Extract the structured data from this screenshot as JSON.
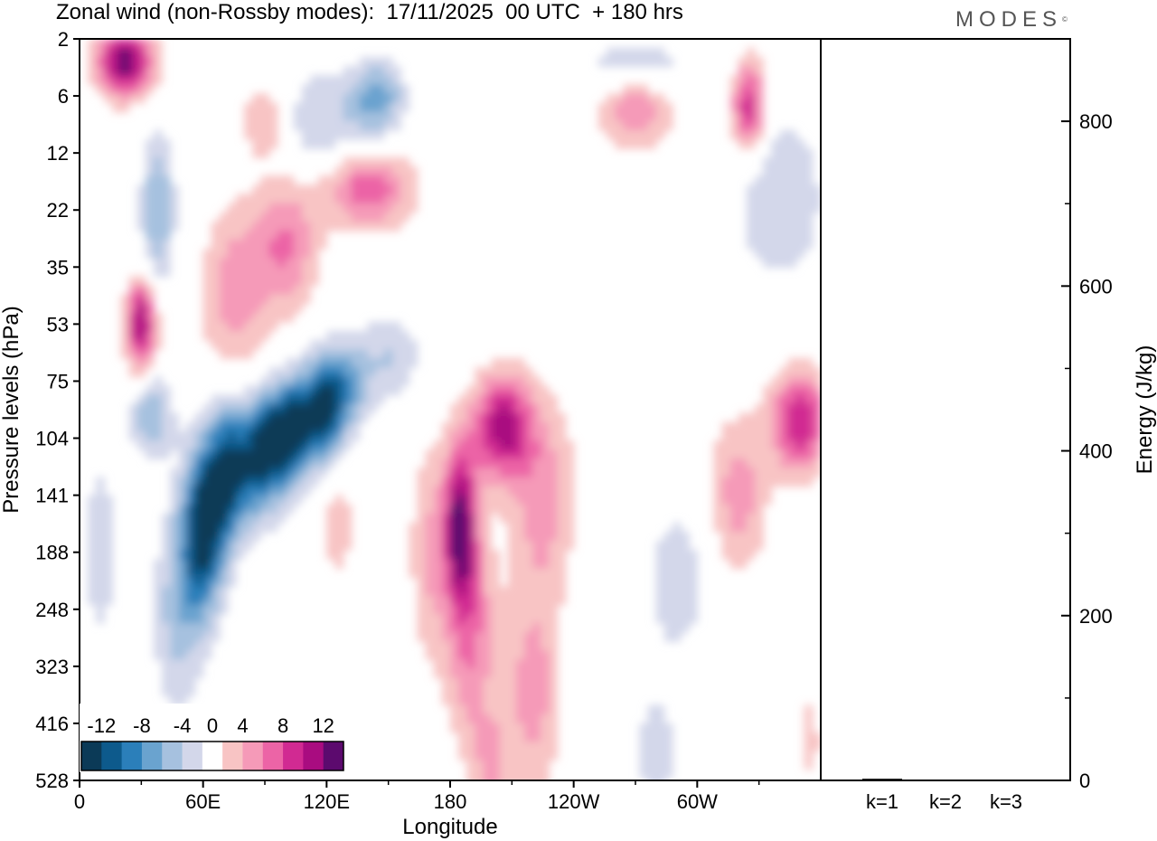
{
  "title": "Zonal wind (non-Rossby modes):  17/11/2025  00 UTC  + 180 hrs",
  "brand": "MODES",
  "chart_data": [
    {
      "type": "heatmap",
      "title": "Zonal wind (non-Rossby modes):  17/11/2025  00 UTC  + 180 hrs",
      "xlabel": "Longitude",
      "ylabel": "Pressure levels (hPa)",
      "x_ticks": [
        "0",
        "60E",
        "120E",
        "180",
        "120W",
        "60W"
      ],
      "x_tick_values": [
        0,
        60,
        120,
        180,
        240,
        300
      ],
      "xlim": [
        0,
        360
      ],
      "y_ticks": [
        "2",
        "6",
        "12",
        "22",
        "35",
        "53",
        "75",
        "104",
        "141",
        "188",
        "248",
        "323",
        "416",
        "528"
      ],
      "colorbar": {
        "labels": [
          "-12",
          "-8",
          "-4",
          "0",
          "4",
          "8",
          "12"
        ],
        "levels": [
          -14,
          -12,
          -10,
          -8,
          -6,
          -4,
          -2,
          2,
          4,
          6,
          8,
          10,
          12,
          14
        ],
        "colors": [
          "#0b3a57",
          "#0d5a8c",
          "#2b7fba",
          "#6aa3cf",
          "#a6c1df",
          "#d3d7ea",
          "#ffffff",
          "#f8c4c4",
          "#f59ab8",
          "#ec64a6",
          "#d12a92",
          "#a90c80",
          "#5c0a6e"
        ]
      },
      "features": [
        {
          "kind": "neg",
          "peak": -14,
          "lon": 100,
          "lev": 7.3
        },
        {
          "kind": "neg",
          "peak": -12,
          "lon": 65,
          "lev": 8.5
        },
        {
          "kind": "neg",
          "peak": -10,
          "lon": 88,
          "lev": 7.8
        },
        {
          "kind": "neg",
          "peak": -12,
          "lon": 118,
          "lev": 6.8
        },
        {
          "kind": "neg",
          "peak": -6,
          "lon": 40,
          "lev": 3.0
        },
        {
          "kind": "neg",
          "peak": -6,
          "lon": 145,
          "lev": 1.0
        },
        {
          "kind": "pos",
          "peak": 12,
          "lon": 185,
          "lev": 8.5
        },
        {
          "kind": "pos",
          "peak": 12,
          "lon": 205,
          "lev": 6.8
        },
        {
          "kind": "pos",
          "peak": 12,
          "lon": 25,
          "lev": 0.4
        },
        {
          "kind": "pos",
          "peak": 12,
          "lon": 30,
          "lev": 5.0
        },
        {
          "kind": "pos",
          "peak": 10,
          "lon": 350,
          "lev": 6.8
        },
        {
          "kind": "pos",
          "peak": 10,
          "lon": 325,
          "lev": 1.2
        },
        {
          "kind": "pos",
          "peak": 8,
          "lon": 140,
          "lev": 2.5
        }
      ]
    },
    {
      "type": "bar",
      "title": "",
      "ylabel": "Energy (J/kg)",
      "categories": [
        "k=1",
        "k=2",
        "k=3"
      ],
      "values": [
        2,
        1,
        1
      ],
      "ylim": [
        0,
        900
      ],
      "y_ticks": [
        "0",
        "200",
        "400",
        "600",
        "800"
      ],
      "y_tick_values": [
        0,
        200,
        400,
        600,
        800
      ]
    }
  ]
}
